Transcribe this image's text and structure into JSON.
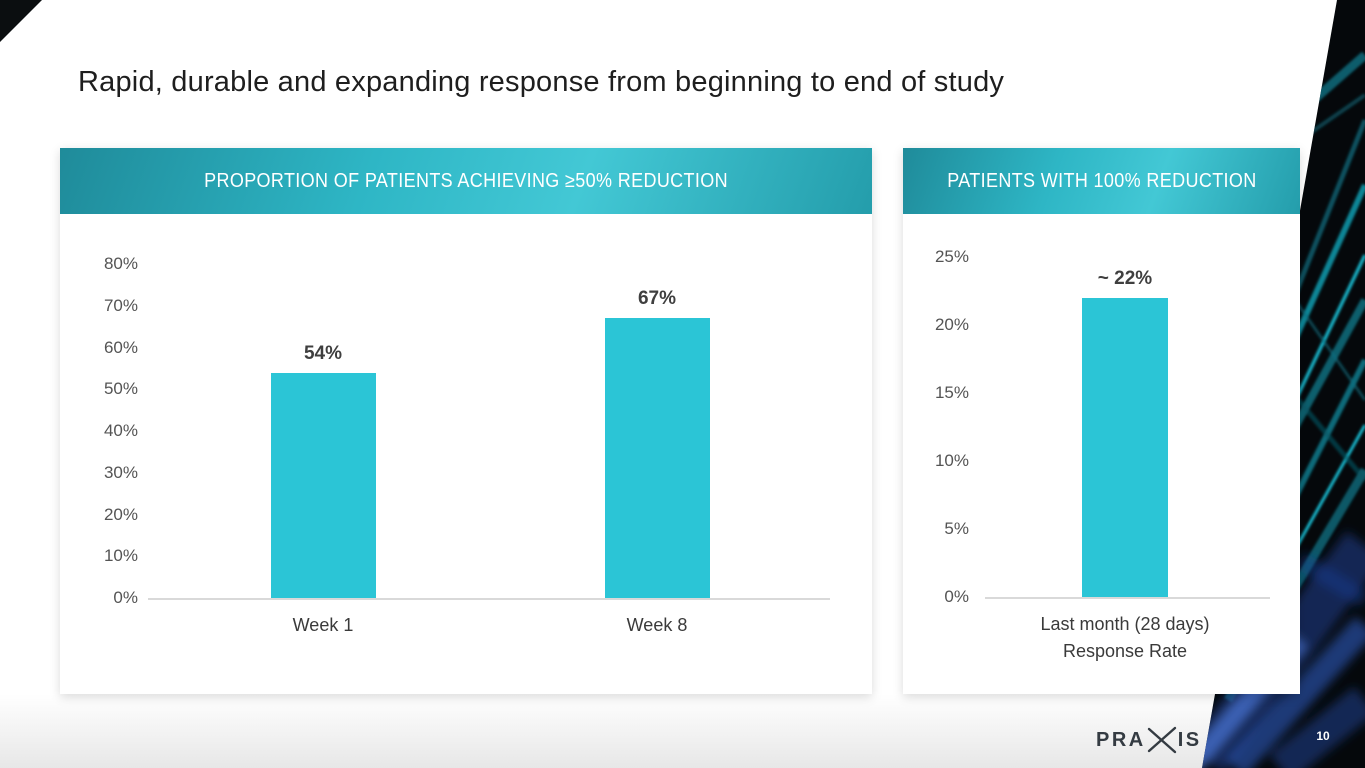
{
  "slide": {
    "title": "Rapid, durable and expanding response from beginning to end of study",
    "page_number": "10",
    "logo": {
      "word_left": "PRA",
      "word_right": "IS"
    }
  },
  "colors": {
    "bar": "#2bc5d6",
    "header_teal": "#2eb6c5",
    "title_text": "#1e1e1e",
    "axis_label": "#545454",
    "data_label": "#3f3f3f",
    "axis_line": "#d9d9d9",
    "logo_text": "#343b42"
  },
  "chart_data": [
    {
      "type": "bar",
      "title": "PROPORTION OF PATIENTS ACHIEVING ≥50% REDUCTION",
      "categories": [
        "Week 1",
        "Week 8"
      ],
      "values": [
        54,
        67
      ],
      "value_labels": [
        "54%",
        "67%"
      ],
      "ylabel": "",
      "xlabel": "",
      "ylim": [
        0,
        80
      ],
      "ytick_step": 10,
      "ytick_suffix": "%",
      "grid": false,
      "legend": false,
      "bar_color": "#2bc5d6"
    },
    {
      "type": "bar",
      "title": "PATIENTS WITH 100% REDUCTION",
      "categories": [
        "Last month (28 days)\nResponse Rate"
      ],
      "values": [
        22
      ],
      "value_labels": [
        "~ 22%"
      ],
      "ylabel": "",
      "xlabel": "",
      "ylim": [
        0,
        25
      ],
      "ytick_step": 5,
      "ytick_suffix": "%",
      "grid": false,
      "legend": false,
      "bar_color": "#2bc5d6"
    }
  ]
}
